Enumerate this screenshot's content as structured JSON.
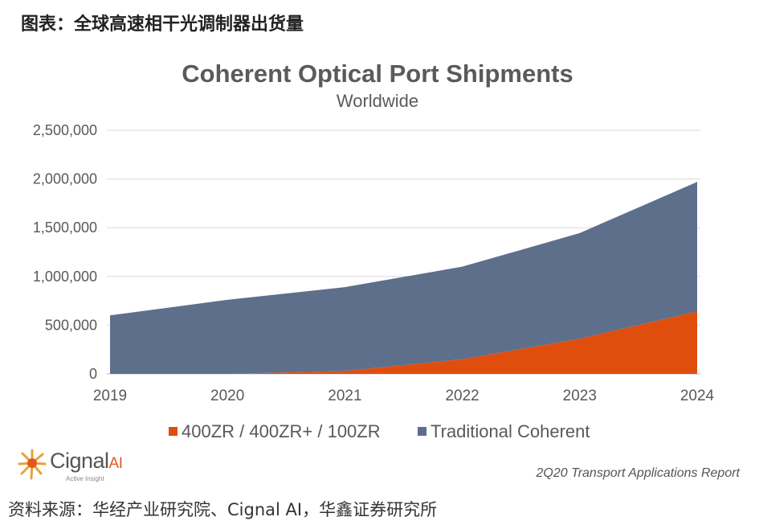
{
  "caption": "图表：全球高速相干光调制器出货量",
  "chart_data": {
    "type": "area",
    "stacked": true,
    "title": "Coherent Optical Port Shipments",
    "subtitle": "Worldwide",
    "x": [
      "2019",
      "2020",
      "2021",
      "2022",
      "2023",
      "2024"
    ],
    "series": [
      {
        "name": "400ZR / 400ZR+ / 100ZR",
        "color": "#e04e0e",
        "values": [
          0,
          0,
          30000,
          150000,
          360000,
          640000
        ]
      },
      {
        "name": "Traditional Coherent",
        "color": "#5e6f8c",
        "values": [
          600000,
          760000,
          860000,
          950000,
          1085000,
          1330000
        ]
      }
    ],
    "y_ticks": [
      "0",
      "500,000",
      "1,000,000",
      "1,500,000",
      "2,000,000",
      "2,500,000"
    ],
    "ylim": [
      0,
      2500000
    ],
    "grid": true,
    "legend": "bottom"
  },
  "logo": {
    "name": "Cignal",
    "suffix": "AI",
    "tagline": "Active Insight"
  },
  "report_label": "2Q20 Transport Applications Report",
  "source": "资料来源：华经产业研究院、Cignal AI，华鑫证券研究所"
}
